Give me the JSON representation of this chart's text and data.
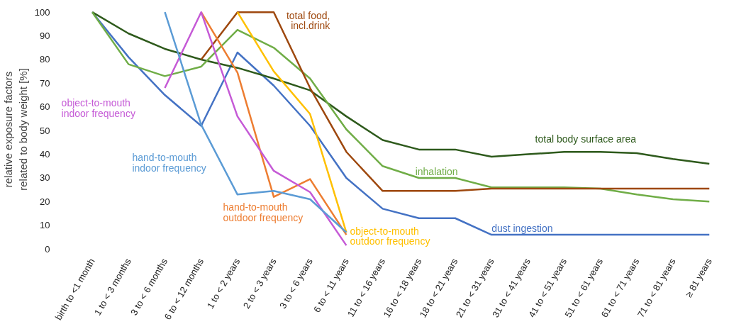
{
  "chart_data": {
    "type": "line",
    "ylabel": "relative exposure factors\nrelated to body weight [%]",
    "categories": [
      "birth to <1 month",
      "1 to < 3 months",
      "3 to < 6 months",
      "6 to < 12 months",
      "1 to < 2 years",
      "2 to < 3 years",
      "3 to < 6 years",
      "6 to < 11 years",
      "11 to < 16 years",
      "16 to < 18 years",
      "18 to < 21 years",
      "21 to < 31 years",
      "31 to < 41 years",
      "41 to < 51 years",
      "51 to < 61 years",
      "61 to < 71 years",
      "71 to < 81 years",
      "≥ 81 years"
    ],
    "ylim": [
      0,
      100
    ],
    "yticks": [
      0,
      10,
      20,
      30,
      40,
      50,
      60,
      70,
      80,
      90,
      100
    ],
    "grid": false,
    "marker": "none",
    "line_style": "solid",
    "series": [
      {
        "name": "dust ingestion",
        "color": "#4472c4",
        "values": [
          100,
          81,
          65,
          52,
          83,
          69,
          52,
          30,
          17,
          13,
          13,
          6,
          6,
          6,
          6,
          6,
          6,
          6
        ]
      },
      {
        "name": "total body surface area",
        "color": "#2e5a1c",
        "values": [
          100,
          91,
          84.5,
          80,
          76.5,
          72,
          67,
          56,
          46,
          42,
          42,
          39,
          40,
          41,
          41,
          40.5,
          38,
          36
        ]
      },
      {
        "name": "inhalation",
        "color": "#70ad47",
        "values": [
          100,
          78,
          73,
          77,
          92.5,
          85,
          72,
          50.5,
          35,
          30,
          30,
          26,
          26,
          26,
          25.5,
          23,
          21,
          20
        ]
      },
      {
        "name": "total food,\nincl.drink",
        "color": "#9e480e",
        "values": [
          null,
          null,
          null,
          80,
          100,
          100,
          68,
          41,
          24.5,
          24.5,
          24.5,
          25.5,
          25.5,
          25.5,
          25.5,
          25.5,
          25.5,
          25.5
        ]
      },
      {
        "name": "object-to-mouth\noutdoor frequency",
        "color": "#ffc000",
        "values": [
          null,
          null,
          null,
          null,
          100,
          75,
          57,
          7,
          null,
          null,
          null,
          null,
          null,
          null,
          null,
          null,
          null,
          null
        ]
      },
      {
        "name": "hand-to-mouth\noutdoor frequency",
        "color": "#ed7d31",
        "values": [
          null,
          null,
          null,
          100,
          74.5,
          22,
          29.5,
          6,
          null,
          null,
          null,
          null,
          null,
          null,
          null,
          null,
          null,
          null
        ]
      },
      {
        "name": "object-to-mouth\nindoor frequency",
        "color": "#c55ad6",
        "values": [
          null,
          null,
          68,
          100,
          56,
          33,
          24,
          1.5,
          null,
          null,
          null,
          null,
          null,
          null,
          null,
          null,
          null,
          null
        ]
      },
      {
        "name": "hand-to-mouth\nindoor frequency",
        "color": "#5b9bd5",
        "values": [
          null,
          null,
          100,
          52.5,
          23,
          24.5,
          21,
          7,
          null,
          null,
          null,
          null,
          null,
          null,
          null,
          null,
          null,
          null
        ]
      }
    ]
  }
}
